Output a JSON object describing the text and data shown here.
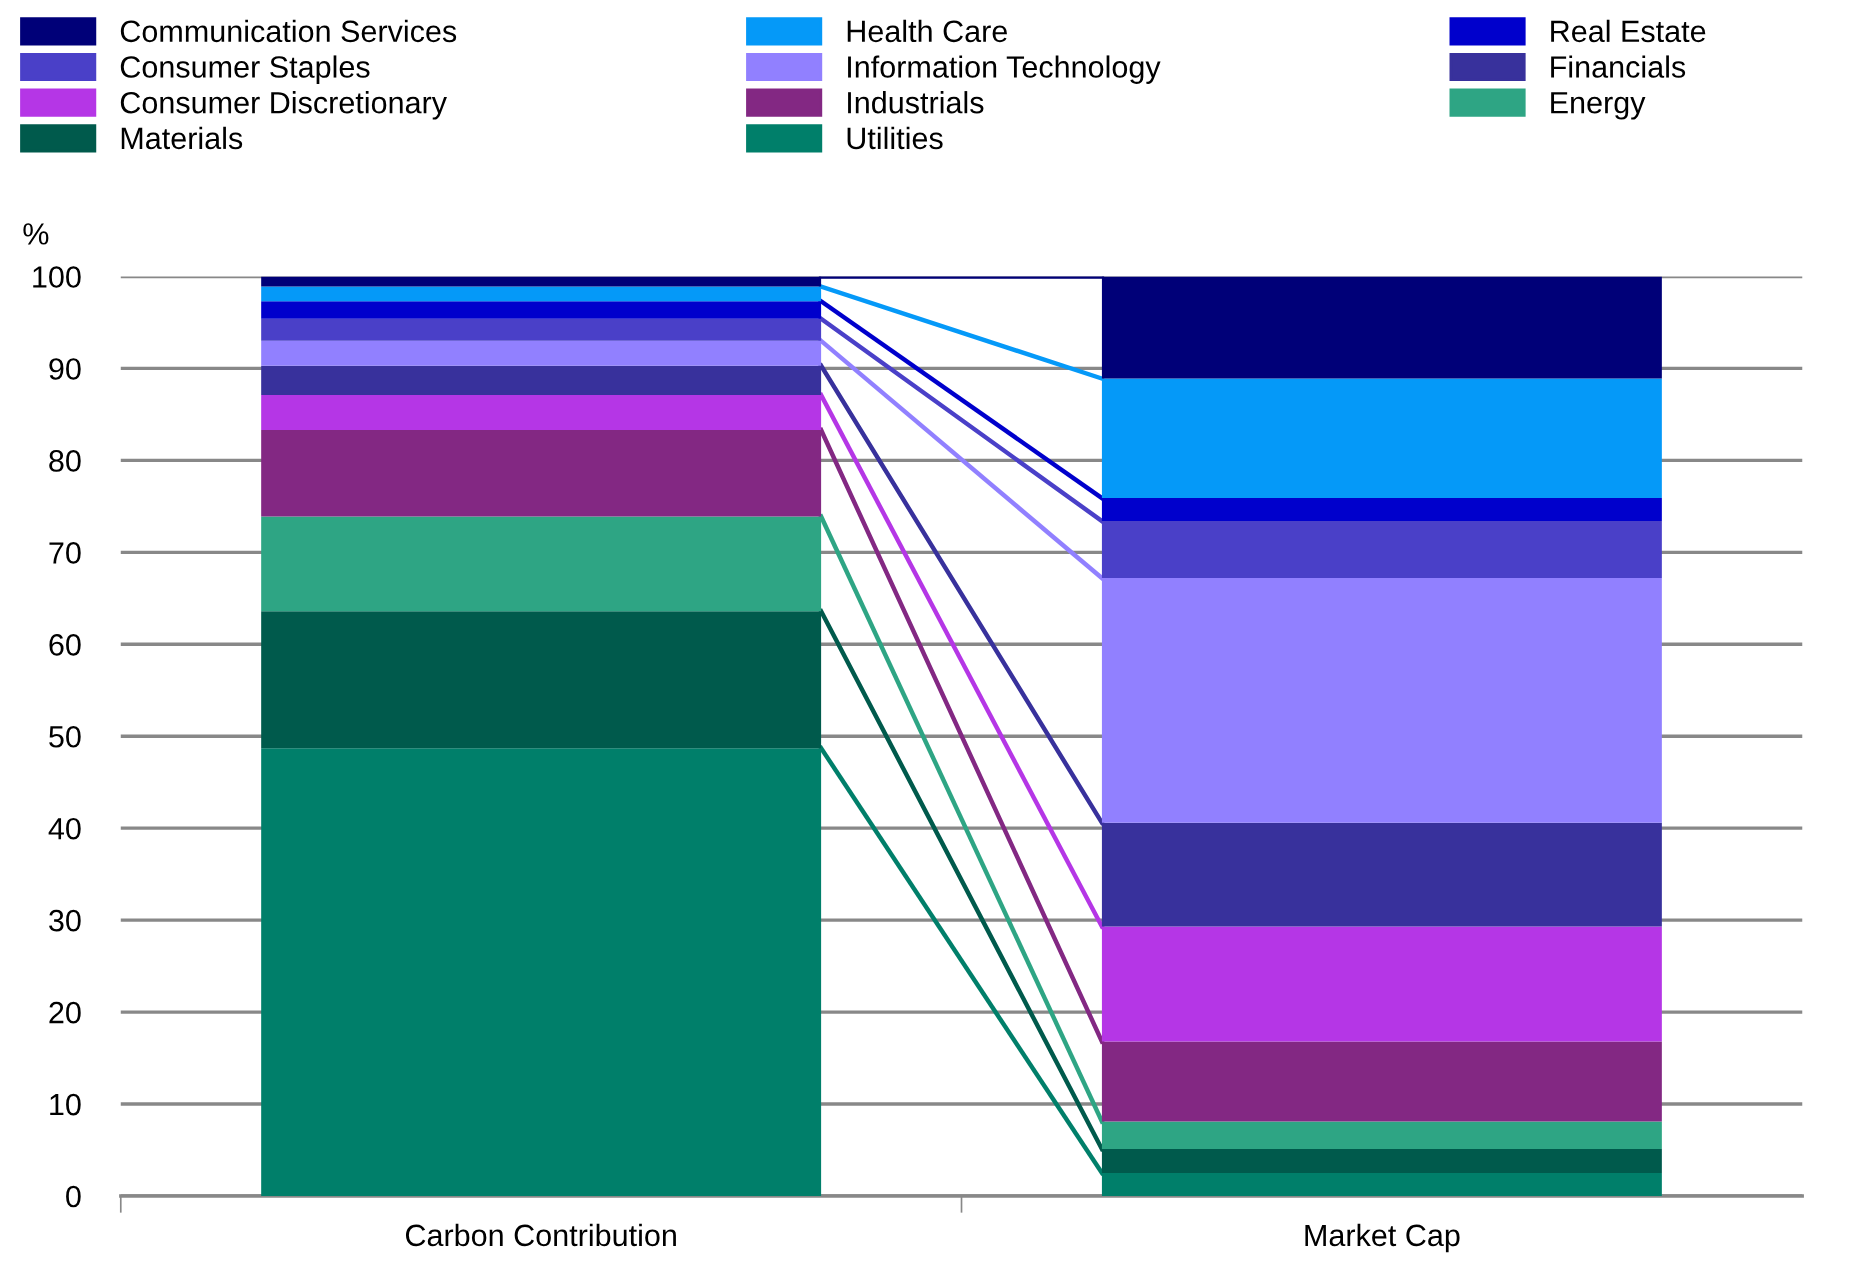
{
  "chart_data": {
    "type": "bar",
    "stacked": true,
    "ylabel": "%",
    "categories": [
      "Carbon Contribution",
      "Market Cap"
    ],
    "series": [
      {
        "name": "Utilities",
        "color": "#007f6a",
        "values": [
          48.7,
          2.5
        ]
      },
      {
        "name": "Materials",
        "color": "#005a4c",
        "values": [
          14.9,
          2.6
        ]
      },
      {
        "name": "Energy",
        "color": "#2ea584",
        "values": [
          10.3,
          3.0
        ]
      },
      {
        "name": "Industrials",
        "color": "#832883",
        "values": [
          9.4,
          8.7
        ]
      },
      {
        "name": "Consumer Discretionary",
        "color": "#b536e6",
        "values": [
          3.8,
          12.5
        ]
      },
      {
        "name": "Financials",
        "color": "#38319c",
        "values": [
          3.2,
          11.3
        ]
      },
      {
        "name": "Information Technology",
        "color": "#9180ff",
        "values": [
          2.7,
          26.6
        ]
      },
      {
        "name": "Consumer Staples",
        "color": "#4a40c8",
        "values": [
          2.4,
          6.2
        ]
      },
      {
        "name": "Real Estate",
        "color": "#0000cc",
        "values": [
          1.9,
          2.5
        ]
      },
      {
        "name": "Health Care",
        "color": "#0599f8",
        "values": [
          1.6,
          13.0
        ]
      },
      {
        "name": "Communication Services",
        "color": "#000078",
        "values": [
          1.1,
          11.1
        ]
      }
    ],
    "ylim": [
      0,
      100
    ],
    "yticks": [
      0,
      10,
      20,
      30,
      40,
      50,
      60,
      70,
      80,
      90,
      100
    ],
    "grid": "y",
    "legend": "top"
  }
}
